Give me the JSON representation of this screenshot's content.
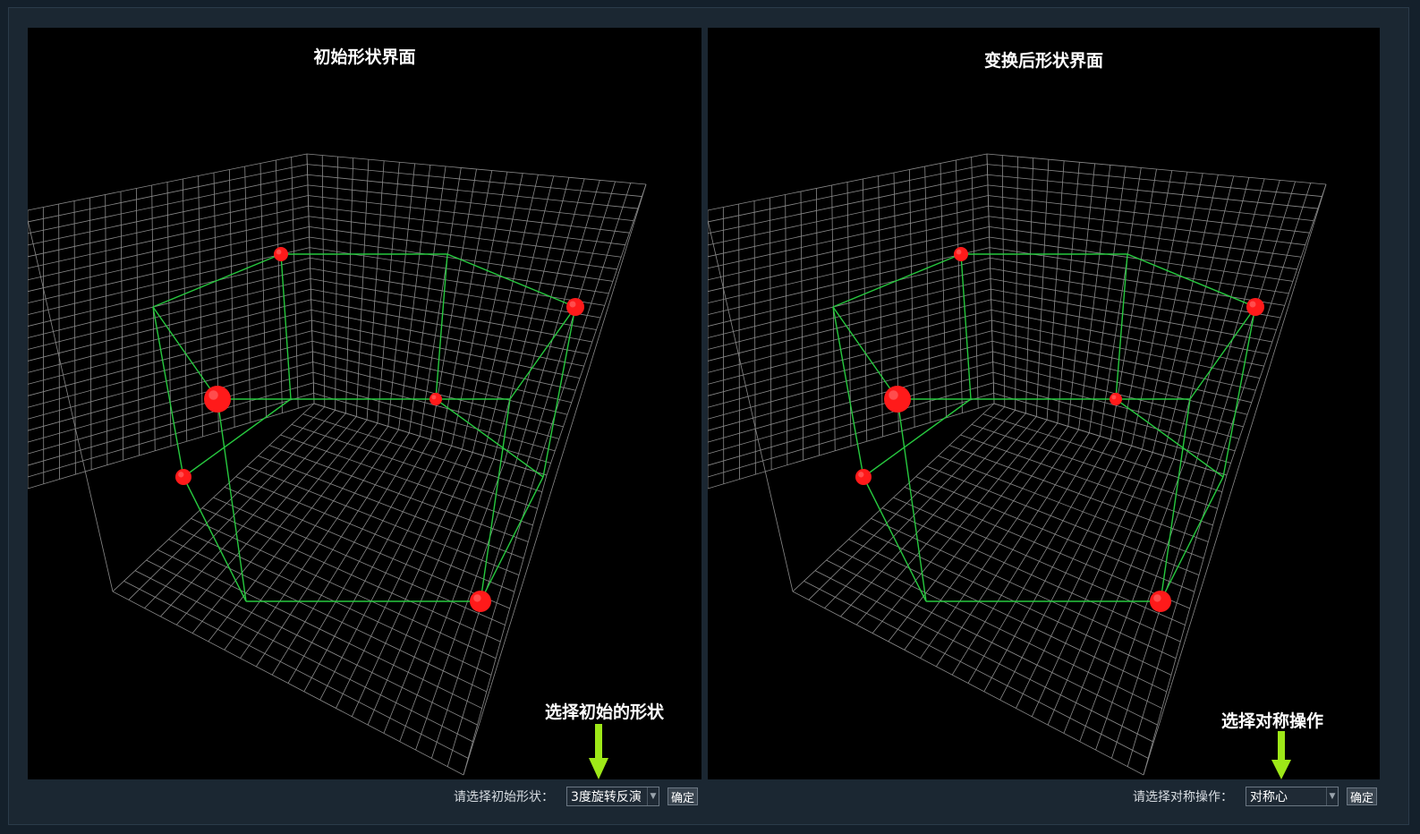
{
  "left_panel": {
    "title": "初始形状界面",
    "annotation": "选择初始的形状",
    "control_label": "请选择初始形状：",
    "select_value": "3度旋转反演",
    "confirm_label": "确定"
  },
  "right_panel": {
    "title": "变换后形状界面",
    "annotation": "选择对称操作",
    "control_label": "请选择对称操作：",
    "select_value": "对称心",
    "confirm_label": "确定"
  },
  "colors": {
    "edge": "#27c93f",
    "atom": "#ff1a1a",
    "grid": "#8a8a8a",
    "arrow": "#9ee818"
  },
  "icons": {
    "dropdown": "chevron-down-icon",
    "arrow": "arrow-down-icon"
  }
}
